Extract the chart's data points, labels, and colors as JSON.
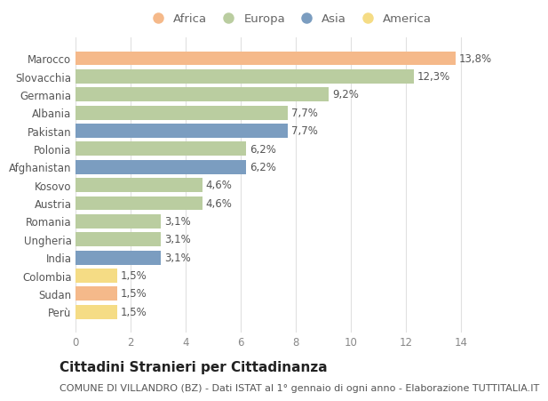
{
  "categories": [
    "Marocco",
    "Slovacchia",
    "Germania",
    "Albania",
    "Pakistan",
    "Polonia",
    "Afghanistan",
    "Kosovo",
    "Austria",
    "Romania",
    "Ungheria",
    "India",
    "Colombia",
    "Sudan",
    "Perù"
  ],
  "values": [
    13.8,
    12.3,
    9.2,
    7.7,
    7.7,
    6.2,
    6.2,
    4.6,
    4.6,
    3.1,
    3.1,
    3.1,
    1.5,
    1.5,
    1.5
  ],
  "labels": [
    "13,8%",
    "12,3%",
    "9,2%",
    "7,7%",
    "7,7%",
    "6,2%",
    "6,2%",
    "4,6%",
    "4,6%",
    "3,1%",
    "3,1%",
    "3,1%",
    "1,5%",
    "1,5%",
    "1,5%"
  ],
  "continents": [
    "Africa",
    "Europa",
    "Europa",
    "Europa",
    "Asia",
    "Europa",
    "Asia",
    "Europa",
    "Europa",
    "Europa",
    "Europa",
    "Asia",
    "America",
    "Africa",
    "America"
  ],
  "continent_colors": {
    "Africa": "#F5B98A",
    "Europa": "#BACDA0",
    "Asia": "#7B9DC0",
    "America": "#F5DC85"
  },
  "legend_order": [
    "Africa",
    "Europa",
    "Asia",
    "America"
  ],
  "title": "Cittadini Stranieri per Cittadinanza",
  "subtitle": "COMUNE DI VILLANDRO (BZ) - Dati ISTAT al 1° gennaio di ogni anno - Elaborazione TUTTITALIA.IT",
  "xlim": [
    0,
    15.5
  ],
  "xticks": [
    0,
    2,
    4,
    6,
    8,
    10,
    12,
    14
  ],
  "bg_color": "#ffffff",
  "grid_color": "#e0e0e0",
  "bar_height": 0.78,
  "label_fontsize": 8.5,
  "title_fontsize": 11,
  "subtitle_fontsize": 8,
  "ytick_fontsize": 8.5,
  "xtick_fontsize": 8.5,
  "legend_fontsize": 9.5
}
